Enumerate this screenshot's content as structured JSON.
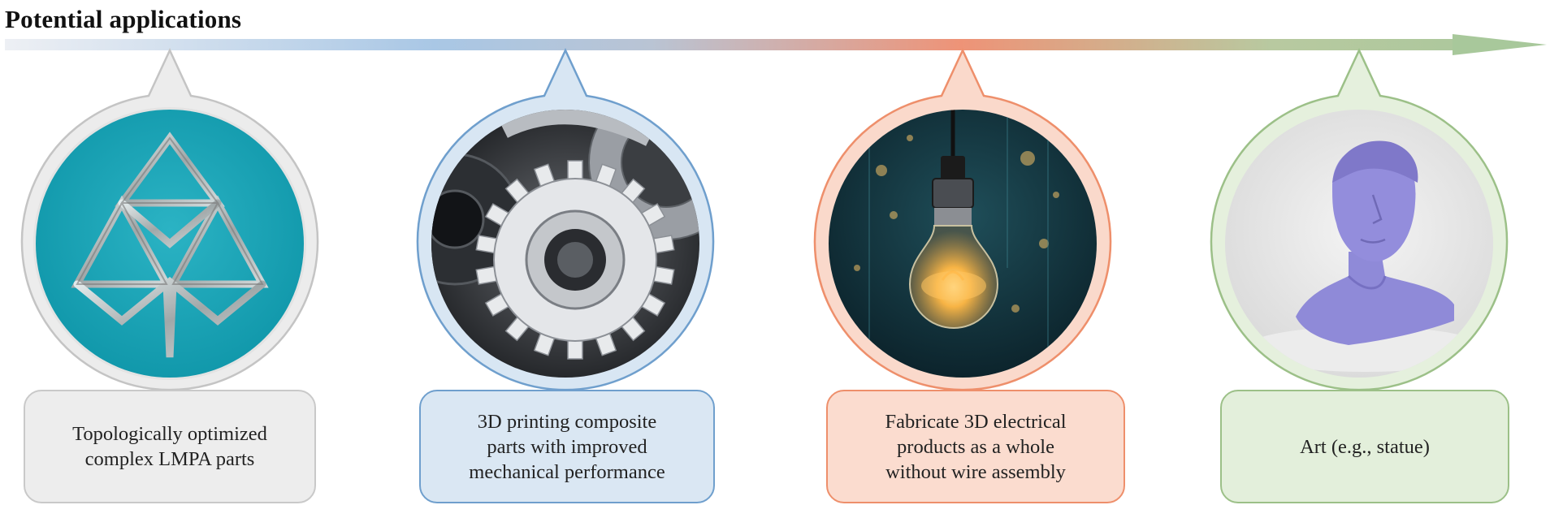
{
  "title": "Potential applications",
  "colors": {
    "gray": "#c9c9c9",
    "blue": "#6f9fcd",
    "orange": "#ee8f6b",
    "green": "#9cc088",
    "arrow_start": "#eceff3",
    "arrow_blue": "#a8c6e4",
    "arrow_orange": "#ee9276",
    "arrow_end": "#a9c89b"
  },
  "applications": [
    {
      "caption": "Topologically optimized\ncomplex LMPA parts",
      "image": "lattice-structure-part",
      "accent": "#c9c9c9",
      "fill": "#ededed"
    },
    {
      "caption": "3D printing composite\nparts with improved\nmechanical performance",
      "image": "gears",
      "accent": "#6f9fcd",
      "fill": "#dae7f3"
    },
    {
      "caption": "Fabricate 3D electrical\nproducts as a whole\nwithout wire assembly",
      "image": "light-bulb",
      "accent": "#ee8f6b",
      "fill": "#fbdccf"
    },
    {
      "caption": "Art (e.g., statue)",
      "image": "statue-bust",
      "accent": "#9cc088",
      "fill": "#e3efdb"
    }
  ]
}
